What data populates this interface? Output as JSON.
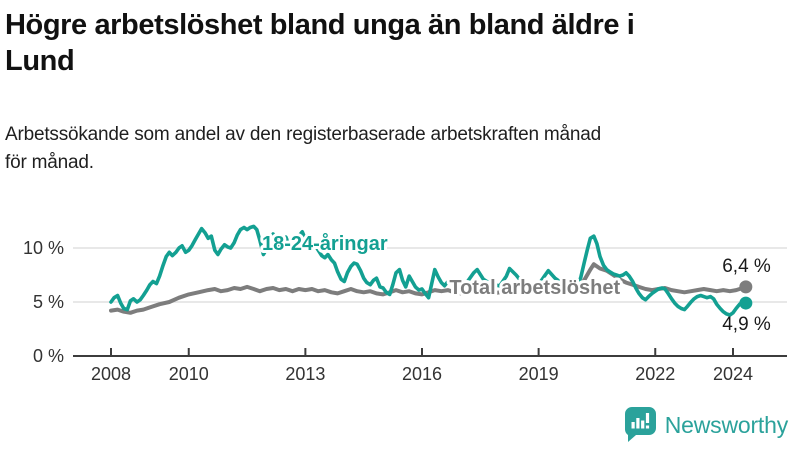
{
  "header": {
    "title_lines": [
      "Högre arbetslöshet bland unga än bland äldre i",
      "Lund"
    ],
    "subtitle_lines": [
      "Arbetssökande som andel av den registerbaserade arbetskraften månad",
      "för månad."
    ]
  },
  "footer": {
    "brand": "Newsworthy",
    "logo_icon": "bar-chart-speech-bubble-icon",
    "brand_color": "#2ba29b"
  },
  "chart_data": {
    "type": "line",
    "title": "Högre arbetslöshet bland unga än bland äldre i Lund",
    "subtitle": "Arbetssökande som andel av den registerbaserade arbetskraften månad för månad.",
    "unit": "%",
    "xlim": [
      2007.0,
      2025.4
    ],
    "ylim": [
      0,
      13.5
    ],
    "grid": "horizontal-only",
    "legend": "inline-series-labels",
    "x_ticks": [
      2008,
      2010,
      2013,
      2016,
      2019,
      2022,
      2024
    ],
    "y_ticks": [
      {
        "value": 0,
        "label": "0 %"
      },
      {
        "value": 5,
        "label": "5 %"
      },
      {
        "value": 10,
        "label": "10 %"
      }
    ],
    "colors": {
      "youth": "#13a092",
      "total": "#7d7d7d",
      "gridline": "#e0e0e0",
      "axis": "#3c3c3c"
    },
    "series": [
      {
        "id": "total",
        "name": "Total arbetslöshet",
        "color": "#7d7d7d",
        "label_pos": {
          "x": 2018.9,
          "y": 5.72
        },
        "end_label": "6,4 %",
        "end_label_offset": {
          "dx": 25,
          "dy": -15
        },
        "points": [
          [
            2008.0,
            4.2
          ],
          [
            2008.17,
            4.3
          ],
          [
            2008.33,
            4.1
          ],
          [
            2008.5,
            4.0
          ],
          [
            2008.67,
            4.2
          ],
          [
            2008.83,
            4.3
          ],
          [
            2009.0,
            4.5
          ],
          [
            2009.25,
            4.8
          ],
          [
            2009.5,
            5.0
          ],
          [
            2009.75,
            5.4
          ],
          [
            2010.0,
            5.7
          ],
          [
            2010.25,
            5.9
          ],
          [
            2010.5,
            6.1
          ],
          [
            2010.67,
            6.2
          ],
          [
            2010.83,
            6.0
          ],
          [
            2011.0,
            6.1
          ],
          [
            2011.17,
            6.3
          ],
          [
            2011.33,
            6.2
          ],
          [
            2011.5,
            6.4
          ],
          [
            2011.67,
            6.2
          ],
          [
            2011.83,
            6.0
          ],
          [
            2012.0,
            6.2
          ],
          [
            2012.17,
            6.3
          ],
          [
            2012.33,
            6.1
          ],
          [
            2012.5,
            6.2
          ],
          [
            2012.67,
            6.0
          ],
          [
            2012.83,
            6.2
          ],
          [
            2013.0,
            6.1
          ],
          [
            2013.17,
            6.2
          ],
          [
            2013.33,
            6.0
          ],
          [
            2013.5,
            6.1
          ],
          [
            2013.67,
            5.9
          ],
          [
            2013.83,
            5.8
          ],
          [
            2014.0,
            6.0
          ],
          [
            2014.17,
            6.2
          ],
          [
            2014.33,
            6.0
          ],
          [
            2014.5,
            5.9
          ],
          [
            2014.67,
            6.0
          ],
          [
            2014.83,
            5.8
          ],
          [
            2015.0,
            5.7
          ],
          [
            2015.17,
            5.9
          ],
          [
            2015.33,
            6.1
          ],
          [
            2015.5,
            5.9
          ],
          [
            2015.67,
            6.0
          ],
          [
            2015.83,
            5.8
          ],
          [
            2016.0,
            5.7
          ],
          [
            2016.17,
            5.9
          ],
          [
            2016.33,
            6.1
          ],
          [
            2016.5,
            6.0
          ],
          [
            2016.67,
            6.1
          ],
          [
            2016.83,
            5.9
          ],
          [
            2017.0,
            5.8
          ],
          [
            2017.17,
            6.0
          ],
          [
            2017.33,
            6.1
          ],
          [
            2017.5,
            5.9
          ],
          [
            2017.67,
            6.0
          ],
          [
            2017.83,
            5.8
          ],
          [
            2018.0,
            5.9
          ],
          [
            2018.17,
            6.1
          ],
          [
            2018.33,
            6.0
          ],
          [
            2018.5,
            5.9
          ],
          [
            2018.67,
            6.0
          ],
          [
            2018.83,
            5.9
          ],
          [
            2019.0,
            6.0
          ],
          [
            2019.17,
            6.2
          ],
          [
            2019.33,
            6.1
          ],
          [
            2019.5,
            6.2
          ],
          [
            2019.67,
            6.3
          ],
          [
            2019.83,
            6.4
          ],
          [
            2020.0,
            6.5
          ],
          [
            2020.17,
            7.0
          ],
          [
            2020.33,
            8.0
          ],
          [
            2020.42,
            8.5
          ],
          [
            2020.5,
            8.3
          ],
          [
            2020.58,
            8.1
          ],
          [
            2020.75,
            7.9
          ],
          [
            2020.92,
            7.5
          ],
          [
            2021.08,
            7.1
          ],
          [
            2021.25,
            6.8
          ],
          [
            2021.42,
            6.6
          ],
          [
            2021.58,
            6.4
          ],
          [
            2021.75,
            6.2
          ],
          [
            2021.92,
            6.1
          ],
          [
            2022.08,
            6.2
          ],
          [
            2022.25,
            6.3
          ],
          [
            2022.42,
            6.1
          ],
          [
            2022.58,
            6.0
          ],
          [
            2022.75,
            5.9
          ],
          [
            2022.92,
            6.0
          ],
          [
            2023.08,
            6.1
          ],
          [
            2023.25,
            6.2
          ],
          [
            2023.42,
            6.1
          ],
          [
            2023.58,
            6.0
          ],
          [
            2023.75,
            6.1
          ],
          [
            2023.92,
            6.0
          ],
          [
            2024.08,
            6.1
          ],
          [
            2024.25,
            6.3
          ],
          [
            2024.33,
            6.4
          ]
        ]
      },
      {
        "id": "youth",
        "name": "18-24-åringar",
        "color": "#13a092",
        "label_pos": {
          "x": 2013.5,
          "y": 9.8
        },
        "end_label": "4,9 %",
        "end_label_offset": {
          "dx": 25,
          "dy": 27
        },
        "points": [
          [
            2008.0,
            5.0
          ],
          [
            2008.08,
            5.4
          ],
          [
            2008.17,
            5.6
          ],
          [
            2008.25,
            4.9
          ],
          [
            2008.33,
            4.4
          ],
          [
            2008.42,
            4.3
          ],
          [
            2008.5,
            5.1
          ],
          [
            2008.58,
            5.3
          ],
          [
            2008.67,
            5.0
          ],
          [
            2008.75,
            5.2
          ],
          [
            2008.83,
            5.6
          ],
          [
            2008.92,
            6.1
          ],
          [
            2009.0,
            6.6
          ],
          [
            2009.08,
            6.9
          ],
          [
            2009.17,
            6.7
          ],
          [
            2009.25,
            7.4
          ],
          [
            2009.33,
            8.3
          ],
          [
            2009.42,
            9.2
          ],
          [
            2009.5,
            9.6
          ],
          [
            2009.58,
            9.3
          ],
          [
            2009.67,
            9.6
          ],
          [
            2009.75,
            10.0
          ],
          [
            2009.83,
            10.2
          ],
          [
            2009.92,
            9.6
          ],
          [
            2010.0,
            9.8
          ],
          [
            2010.08,
            10.2
          ],
          [
            2010.17,
            10.8
          ],
          [
            2010.25,
            11.3
          ],
          [
            2010.33,
            11.8
          ],
          [
            2010.42,
            11.4
          ],
          [
            2010.5,
            10.9
          ],
          [
            2010.58,
            11.1
          ],
          [
            2010.67,
            9.8
          ],
          [
            2010.75,
            9.4
          ],
          [
            2010.83,
            9.9
          ],
          [
            2010.92,
            10.3
          ],
          [
            2011.0,
            10.1
          ],
          [
            2011.08,
            10.0
          ],
          [
            2011.17,
            10.5
          ],
          [
            2011.25,
            11.2
          ],
          [
            2011.33,
            11.7
          ],
          [
            2011.42,
            11.9
          ],
          [
            2011.5,
            11.7
          ],
          [
            2011.58,
            11.9
          ],
          [
            2011.67,
            12.0
          ],
          [
            2011.75,
            11.7
          ],
          [
            2011.83,
            10.7
          ],
          [
            2011.92,
            9.4
          ],
          [
            2012.0,
            9.9
          ],
          [
            2012.08,
            10.6
          ],
          [
            2012.17,
            11.3
          ],
          [
            2012.25,
            10.8
          ],
          [
            2012.33,
            10.2
          ],
          [
            2012.42,
            10.7
          ],
          [
            2012.5,
            11.0
          ],
          [
            2012.58,
            10.3
          ],
          [
            2012.67,
            9.9
          ],
          [
            2012.75,
            10.4
          ],
          [
            2012.83,
            11.1
          ],
          [
            2012.92,
            11.5
          ],
          [
            2013.0,
            10.8
          ],
          [
            2013.08,
            10.1
          ],
          [
            2013.17,
            9.9
          ],
          [
            2013.25,
            10.3
          ],
          [
            2013.33,
            9.8
          ],
          [
            2013.42,
            9.3
          ],
          [
            2013.5,
            9.1
          ],
          [
            2013.58,
            9.4
          ],
          [
            2013.67,
            8.9
          ],
          [
            2013.75,
            8.6
          ],
          [
            2013.83,
            7.8
          ],
          [
            2013.92,
            7.1
          ],
          [
            2014.0,
            6.9
          ],
          [
            2014.08,
            7.7
          ],
          [
            2014.17,
            8.3
          ],
          [
            2014.25,
            8.6
          ],
          [
            2014.33,
            8.5
          ],
          [
            2014.42,
            7.9
          ],
          [
            2014.5,
            7.2
          ],
          [
            2014.58,
            6.8
          ],
          [
            2014.67,
            6.6
          ],
          [
            2014.75,
            7.0
          ],
          [
            2014.83,
            7.2
          ],
          [
            2014.92,
            6.4
          ],
          [
            2015.0,
            6.3
          ],
          [
            2015.08,
            5.9
          ],
          [
            2015.17,
            5.7
          ],
          [
            2015.25,
            6.6
          ],
          [
            2015.33,
            7.7
          ],
          [
            2015.42,
            8.0
          ],
          [
            2015.5,
            7.0
          ],
          [
            2015.58,
            6.4
          ],
          [
            2015.67,
            7.4
          ],
          [
            2015.75,
            6.9
          ],
          [
            2015.83,
            6.4
          ],
          [
            2015.92,
            6.1
          ],
          [
            2016.0,
            6.2
          ],
          [
            2016.08,
            5.8
          ],
          [
            2016.17,
            5.4
          ],
          [
            2016.25,
            6.7
          ],
          [
            2016.33,
            8.0
          ],
          [
            2016.42,
            7.3
          ],
          [
            2016.5,
            6.8
          ],
          [
            2016.58,
            6.5
          ],
          [
            2016.67,
            6.9
          ],
          [
            2016.75,
            7.1
          ],
          [
            2016.83,
            6.6
          ],
          [
            2016.92,
            6.4
          ],
          [
            2017.0,
            6.5
          ],
          [
            2017.17,
            6.9
          ],
          [
            2017.33,
            7.7
          ],
          [
            2017.42,
            8.0
          ],
          [
            2017.58,
            7.1
          ],
          [
            2017.67,
            6.9
          ],
          [
            2017.83,
            6.6
          ],
          [
            2018.0,
            6.5
          ],
          [
            2018.17,
            7.4
          ],
          [
            2018.25,
            8.1
          ],
          [
            2018.42,
            7.5
          ],
          [
            2018.58,
            6.8
          ],
          [
            2018.75,
            6.6
          ],
          [
            2018.92,
            6.4
          ],
          [
            2019.0,
            6.6
          ],
          [
            2019.17,
            7.5
          ],
          [
            2019.25,
            7.9
          ],
          [
            2019.42,
            7.2
          ],
          [
            2019.58,
            6.8
          ],
          [
            2019.75,
            6.7
          ],
          [
            2019.92,
            6.6
          ],
          [
            2020.0,
            6.8
          ],
          [
            2020.08,
            7.2
          ],
          [
            2020.17,
            8.6
          ],
          [
            2020.25,
            9.8
          ],
          [
            2020.33,
            10.9
          ],
          [
            2020.42,
            11.1
          ],
          [
            2020.5,
            10.4
          ],
          [
            2020.58,
            9.2
          ],
          [
            2020.67,
            8.4
          ],
          [
            2020.75,
            8.0
          ],
          [
            2020.83,
            7.8
          ],
          [
            2020.92,
            7.6
          ],
          [
            2021.0,
            7.5
          ],
          [
            2021.08,
            7.4
          ],
          [
            2021.17,
            7.5
          ],
          [
            2021.25,
            7.7
          ],
          [
            2021.33,
            7.4
          ],
          [
            2021.42,
            6.9
          ],
          [
            2021.5,
            6.3
          ],
          [
            2021.58,
            5.8
          ],
          [
            2021.67,
            5.4
          ],
          [
            2021.75,
            5.2
          ],
          [
            2021.83,
            5.5
          ],
          [
            2021.92,
            5.8
          ],
          [
            2022.0,
            6.0
          ],
          [
            2022.08,
            6.2
          ],
          [
            2022.17,
            6.3
          ],
          [
            2022.25,
            6.2
          ],
          [
            2022.33,
            5.8
          ],
          [
            2022.42,
            5.3
          ],
          [
            2022.5,
            4.9
          ],
          [
            2022.58,
            4.6
          ],
          [
            2022.67,
            4.4
          ],
          [
            2022.75,
            4.3
          ],
          [
            2022.83,
            4.6
          ],
          [
            2022.92,
            5.0
          ],
          [
            2023.0,
            5.3
          ],
          [
            2023.08,
            5.5
          ],
          [
            2023.17,
            5.6
          ],
          [
            2023.25,
            5.5
          ],
          [
            2023.33,
            5.4
          ],
          [
            2023.42,
            5.5
          ],
          [
            2023.5,
            5.3
          ],
          [
            2023.58,
            4.8
          ],
          [
            2023.67,
            4.4
          ],
          [
            2023.75,
            4.1
          ],
          [
            2023.83,
            3.9
          ],
          [
            2023.92,
            3.8
          ],
          [
            2024.0,
            4.0
          ],
          [
            2024.08,
            4.4
          ],
          [
            2024.17,
            4.8
          ],
          [
            2024.25,
            5.0
          ],
          [
            2024.33,
            4.9
          ]
        ]
      }
    ]
  }
}
